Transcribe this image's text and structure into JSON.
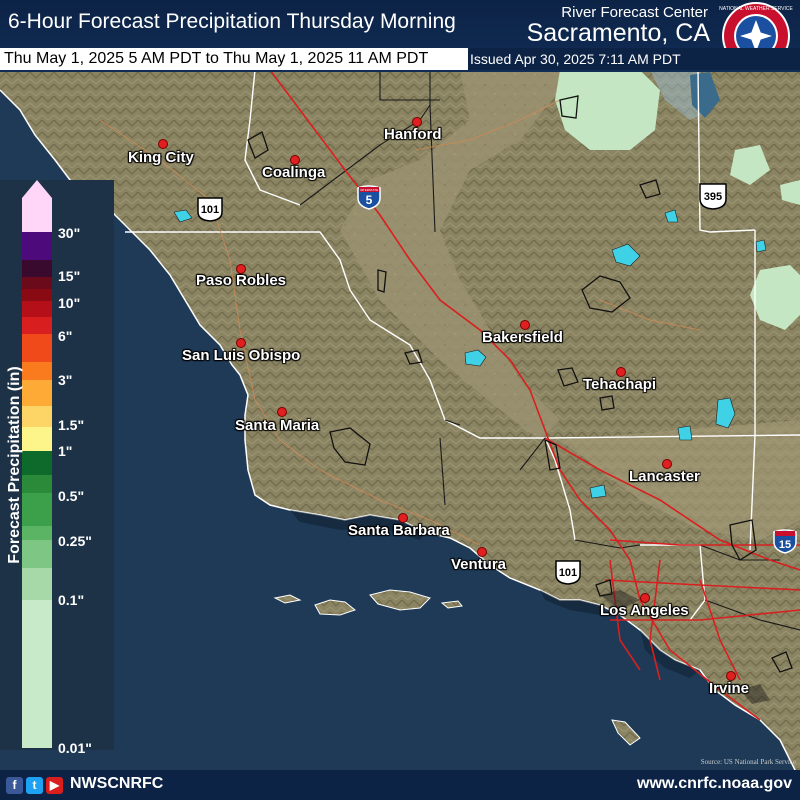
{
  "header": {
    "title": "6-Hour Forecast Precipitation Thursday Morning",
    "rfc_label": "River Forecast Center",
    "rfc_city": "Sacramento, CA",
    "valid_time": "Thu May 1, 2025 5 AM PDT to Thu May 1, 2025 11 AM PDT",
    "issued": "Issued Apr 30, 2025 7:11 AM PDT",
    "logo_text": "NATIONAL WEATHER SERVICE"
  },
  "legend": {
    "title": "Forecast Precipitation (in)",
    "labels": [
      "30\"",
      "15\"",
      "10\"",
      "6\"",
      "3\"",
      "1.5\"",
      "1\"",
      "0.5\"",
      "0.25\"",
      "0.1\"",
      "0.01\""
    ],
    "colors": [
      "#ffd6f7",
      "#4c0a7a",
      "#3a0a2e",
      "#6a0a1a",
      "#8a0a14",
      "#b5101a",
      "#d81e1e",
      "#f04a1a",
      "#fa7a1e",
      "#fdab36",
      "#fdd466",
      "#fdf58a",
      "#0e6a2a",
      "#2a8a3a",
      "#3ca04a",
      "#5ab464",
      "#7ec684",
      "#a6d8a8",
      "#c9eac8"
    ]
  },
  "cities": [
    {
      "name": "Hanford"
    },
    {
      "name": "King City"
    },
    {
      "name": "Coalinga"
    },
    {
      "name": "Paso Robles"
    },
    {
      "name": "San Luis Obispo"
    },
    {
      "name": "Bakersfield"
    },
    {
      "name": "Tehachapi"
    },
    {
      "name": "Santa Maria"
    },
    {
      "name": "Lancaster"
    },
    {
      "name": "Santa Barbara"
    },
    {
      "name": "Ventura"
    },
    {
      "name": "Los Angeles"
    },
    {
      "name": "Irvine"
    }
  ],
  "shields": {
    "i5": "5",
    "us101_a": "101",
    "us101_b": "101",
    "us395": "395",
    "i15": "15",
    "interstate_word": "INTERSTATE"
  },
  "footer": {
    "social_handle": "NWSCNRFC",
    "website": "www.cnrfc.noaa.gov",
    "icons": [
      "facebook-icon",
      "twitter-icon",
      "youtube-icon"
    ]
  },
  "attribution": "Source: US National Park Service"
}
